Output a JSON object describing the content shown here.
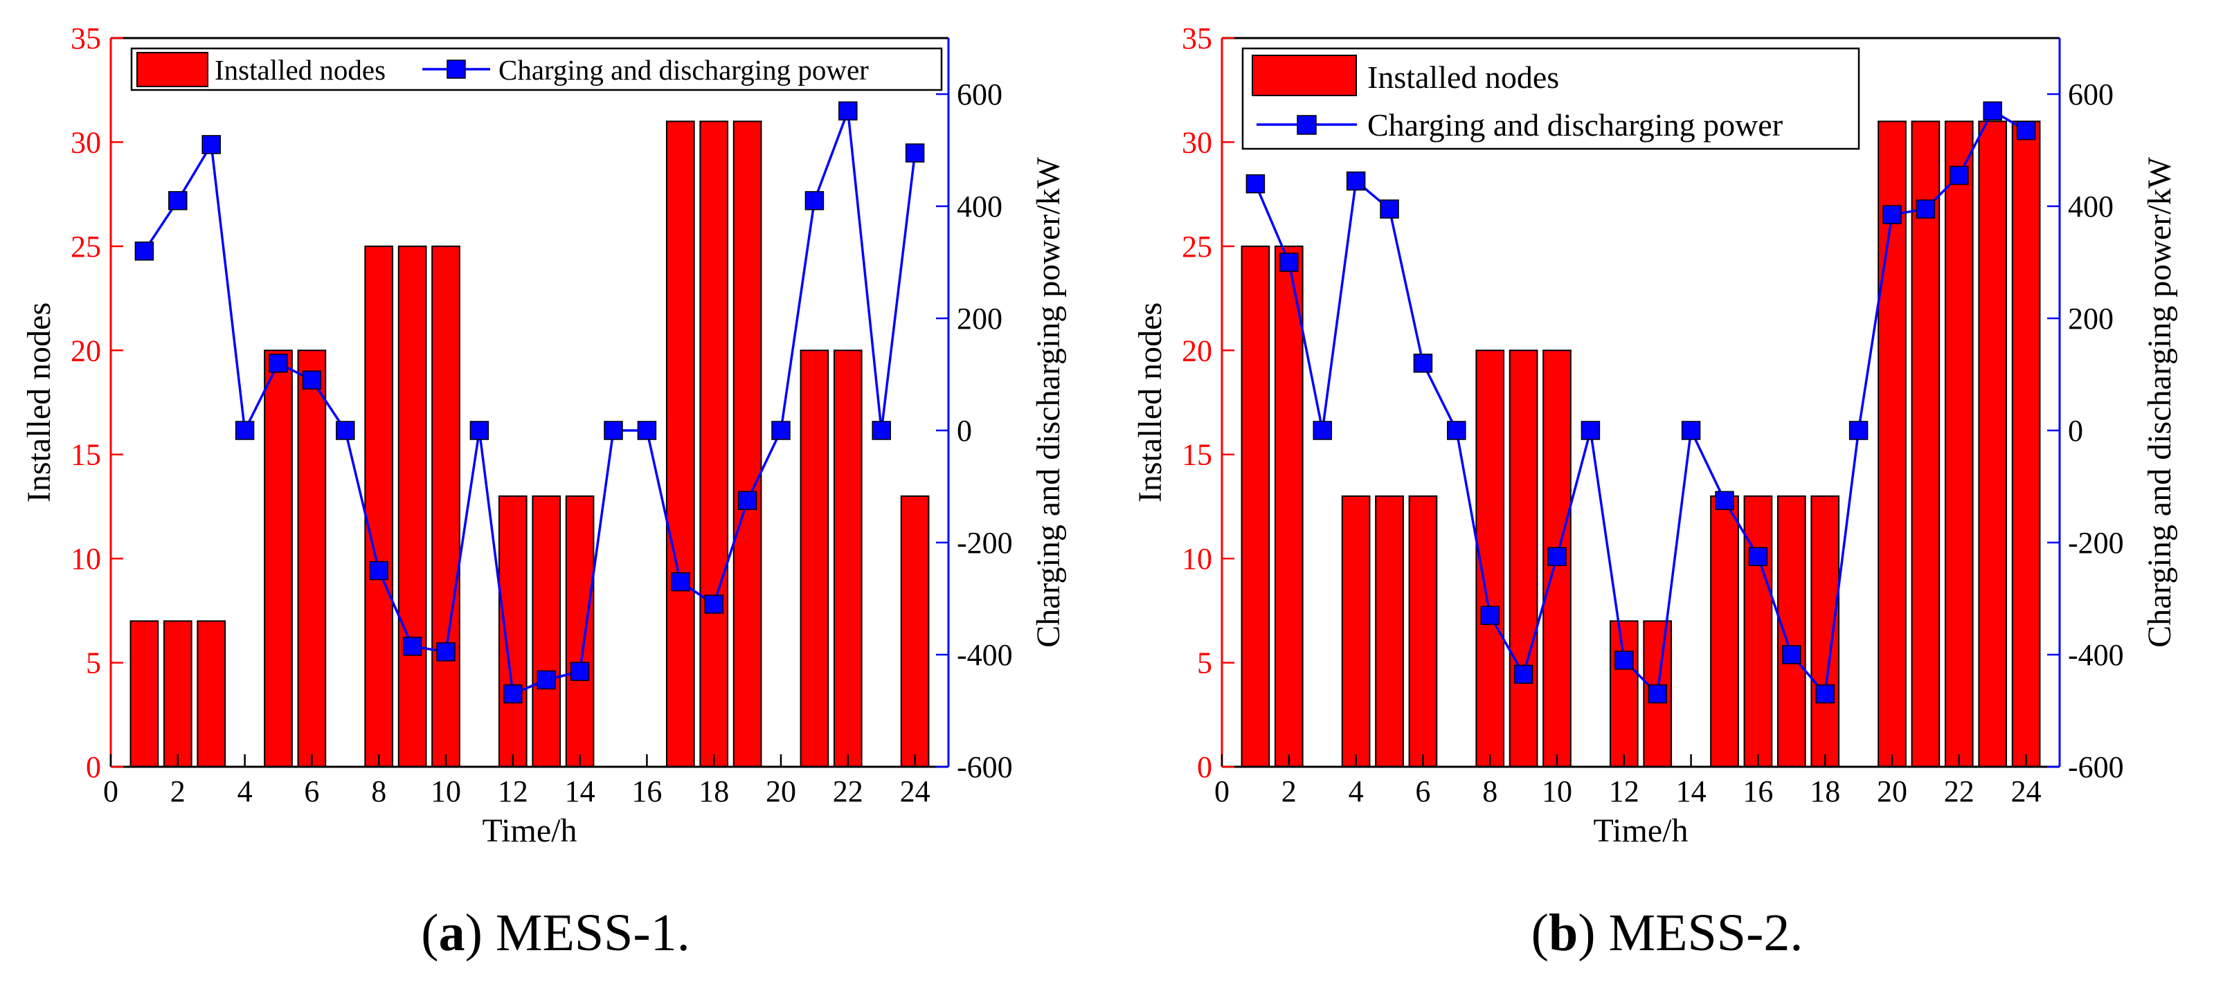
{
  "colors": {
    "bars": "#ff0000",
    "line": "#0000ff",
    "marker": "#0000ff",
    "left_axis": "#ff0000",
    "right_axis": "#0000ff",
    "frame": "#000000"
  },
  "chart_data": [
    {
      "type": "bar",
      "panel": "a",
      "caption_label": "a",
      "caption_text": "MESS-1.",
      "xlabel": "Time/h",
      "ylabel": "Installed nodes",
      "y2label": "Charging and discharging power/kW",
      "xlim": [
        0,
        25
      ],
      "ylim": [
        0,
        35
      ],
      "y2lim": [
        -600,
        700
      ],
      "x_ticks": [
        0,
        2,
        4,
        6,
        8,
        10,
        12,
        14,
        16,
        18,
        20,
        22,
        24
      ],
      "y_ticks": [
        0,
        5,
        10,
        15,
        20,
        25,
        30,
        35
      ],
      "y2_ticks": [
        -600,
        -400,
        -200,
        0,
        200,
        400,
        600
      ],
      "legend_layout": "horizontal",
      "series": [
        {
          "name": "Installed nodes",
          "type": "bar",
          "axis": "left",
          "x": [
            1,
            2,
            3,
            4,
            5,
            6,
            7,
            8,
            9,
            10,
            11,
            12,
            13,
            14,
            15,
            16,
            17,
            18,
            19,
            20,
            21,
            22,
            23,
            24
          ],
          "values": [
            7,
            7,
            7,
            0,
            20,
            20,
            0,
            25,
            25,
            25,
            0,
            13,
            13,
            13,
            0,
            0,
            31,
            31,
            31,
            0,
            20,
            20,
            0,
            13
          ]
        },
        {
          "name": "Charging and discharging power",
          "type": "line",
          "axis": "right",
          "x": [
            1,
            2,
            3,
            4,
            5,
            6,
            7,
            8,
            9,
            10,
            11,
            12,
            13,
            14,
            15,
            16,
            17,
            18,
            19,
            20,
            21,
            22,
            23,
            24
          ],
          "values": [
            320,
            410,
            510,
            0,
            120,
            90,
            0,
            -250,
            -385,
            -395,
            0,
            -470,
            -445,
            -430,
            0,
            0,
            -270,
            -310,
            -125,
            0,
            410,
            570,
            0,
            495
          ]
        }
      ]
    },
    {
      "type": "bar",
      "panel": "b",
      "caption_label": "b",
      "caption_text": "MESS-2.",
      "xlabel": "Time/h",
      "ylabel": "Installed nodes",
      "y2label": "Charging and discharging power/kW",
      "xlim": [
        0,
        25
      ],
      "ylim": [
        0,
        35
      ],
      "y2lim": [
        -600,
        700
      ],
      "x_ticks": [
        0,
        2,
        4,
        6,
        8,
        10,
        12,
        14,
        16,
        18,
        20,
        22,
        24
      ],
      "y_ticks": [
        0,
        5,
        10,
        15,
        20,
        25,
        30,
        35
      ],
      "y2_ticks": [
        -600,
        -400,
        -200,
        0,
        200,
        400,
        600
      ],
      "legend_layout": "vertical",
      "series": [
        {
          "name": "Installed nodes",
          "type": "bar",
          "axis": "left",
          "x": [
            1,
            2,
            3,
            4,
            5,
            6,
            7,
            8,
            9,
            10,
            11,
            12,
            13,
            14,
            15,
            16,
            17,
            18,
            19,
            20,
            21,
            22,
            23,
            24
          ],
          "values": [
            25,
            25,
            0,
            13,
            13,
            13,
            0,
            20,
            20,
            20,
            0,
            7,
            7,
            0,
            13,
            13,
            13,
            13,
            0,
            31,
            31,
            31,
            31,
            31
          ]
        },
        {
          "name": "Charging and discharging power",
          "type": "line",
          "axis": "right",
          "x": [
            1,
            2,
            3,
            4,
            5,
            6,
            7,
            8,
            9,
            10,
            11,
            12,
            13,
            14,
            15,
            16,
            17,
            18,
            19,
            20,
            21,
            22,
            23,
            24
          ],
          "values": [
            440,
            300,
            0,
            445,
            395,
            120,
            0,
            -330,
            -435,
            -225,
            0,
            -410,
            -470,
            0,
            -125,
            -225,
            -400,
            -470,
            0,
            385,
            395,
            455,
            570,
            535
          ]
        }
      ]
    }
  ]
}
